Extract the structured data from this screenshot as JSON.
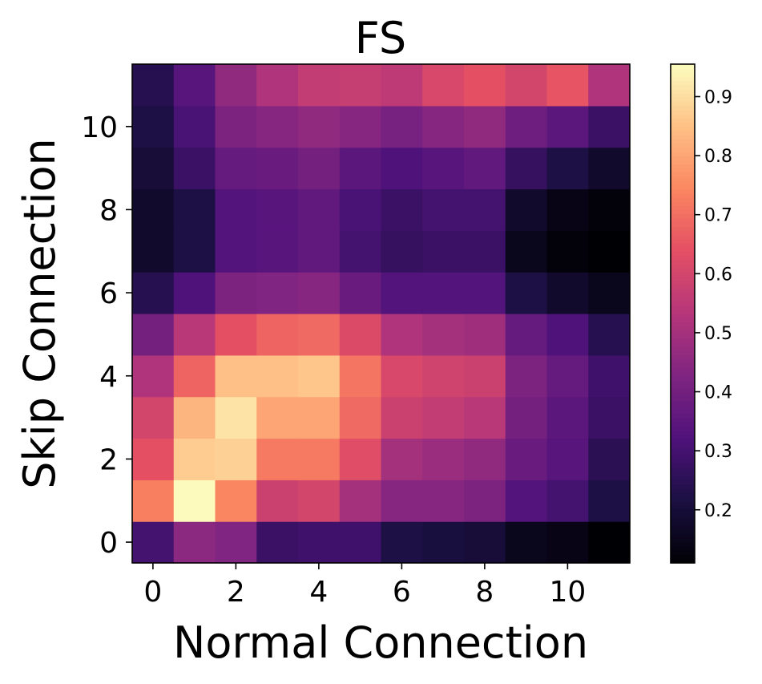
{
  "chart_data": {
    "type": "heatmap",
    "title": "FS",
    "xlabel": "Normal Connection",
    "ylabel": "Skip Connection",
    "x": [
      0,
      1,
      2,
      3,
      4,
      5,
      6,
      7,
      8,
      9,
      10,
      11
    ],
    "y": [
      0,
      1,
      2,
      3,
      4,
      5,
      6,
      7,
      8,
      9,
      10,
      11
    ],
    "x_ticks": [
      0,
      2,
      4,
      6,
      8,
      10
    ],
    "y_ticks": [
      0,
      2,
      4,
      6,
      8,
      10
    ],
    "x_tick_labels": [
      "0",
      "2",
      "4",
      "6",
      "8",
      "10"
    ],
    "y_tick_labels": [
      "0",
      "2",
      "4",
      "6",
      "8",
      "10"
    ],
    "colormap": "magma",
    "colorbar": {
      "vmin": 0.11,
      "vmax": 0.955,
      "ticks": [
        0.2,
        0.3,
        0.4,
        0.5,
        0.6,
        0.7,
        0.8,
        0.9
      ],
      "tick_labels": [
        "0.2",
        "0.3",
        "0.4",
        "0.5",
        "0.6",
        "0.7",
        "0.8",
        "0.9"
      ]
    },
    "values": [
      [
        0.3,
        0.45,
        0.43,
        0.28,
        0.29,
        0.29,
        0.22,
        0.21,
        0.2,
        0.15,
        0.14,
        0.11
      ],
      [
        0.73,
        0.95,
        0.74,
        0.58,
        0.6,
        0.5,
        0.44,
        0.44,
        0.42,
        0.33,
        0.3,
        0.22
      ],
      [
        0.64,
        0.87,
        0.88,
        0.72,
        0.72,
        0.63,
        0.5,
        0.48,
        0.46,
        0.38,
        0.34,
        0.25
      ],
      [
        0.6,
        0.83,
        0.91,
        0.8,
        0.8,
        0.69,
        0.58,
        0.56,
        0.54,
        0.4,
        0.35,
        0.28
      ],
      [
        0.52,
        0.68,
        0.85,
        0.85,
        0.86,
        0.71,
        0.61,
        0.59,
        0.58,
        0.42,
        0.37,
        0.29
      ],
      [
        0.4,
        0.54,
        0.64,
        0.68,
        0.69,
        0.62,
        0.52,
        0.5,
        0.49,
        0.37,
        0.32,
        0.24
      ],
      [
        0.24,
        0.32,
        0.42,
        0.43,
        0.44,
        0.38,
        0.33,
        0.33,
        0.33,
        0.22,
        0.18,
        0.15
      ],
      [
        0.18,
        0.22,
        0.33,
        0.34,
        0.36,
        0.3,
        0.27,
        0.28,
        0.28,
        0.15,
        0.12,
        0.11
      ],
      [
        0.18,
        0.22,
        0.33,
        0.34,
        0.36,
        0.31,
        0.28,
        0.3,
        0.3,
        0.18,
        0.14,
        0.12
      ],
      [
        0.2,
        0.28,
        0.37,
        0.38,
        0.4,
        0.35,
        0.32,
        0.34,
        0.36,
        0.27,
        0.22,
        0.18
      ],
      [
        0.22,
        0.31,
        0.42,
        0.44,
        0.46,
        0.44,
        0.41,
        0.44,
        0.46,
        0.39,
        0.35,
        0.28
      ],
      [
        0.24,
        0.34,
        0.46,
        0.52,
        0.56,
        0.57,
        0.55,
        0.61,
        0.64,
        0.6,
        0.65,
        0.52
      ]
    ]
  }
}
